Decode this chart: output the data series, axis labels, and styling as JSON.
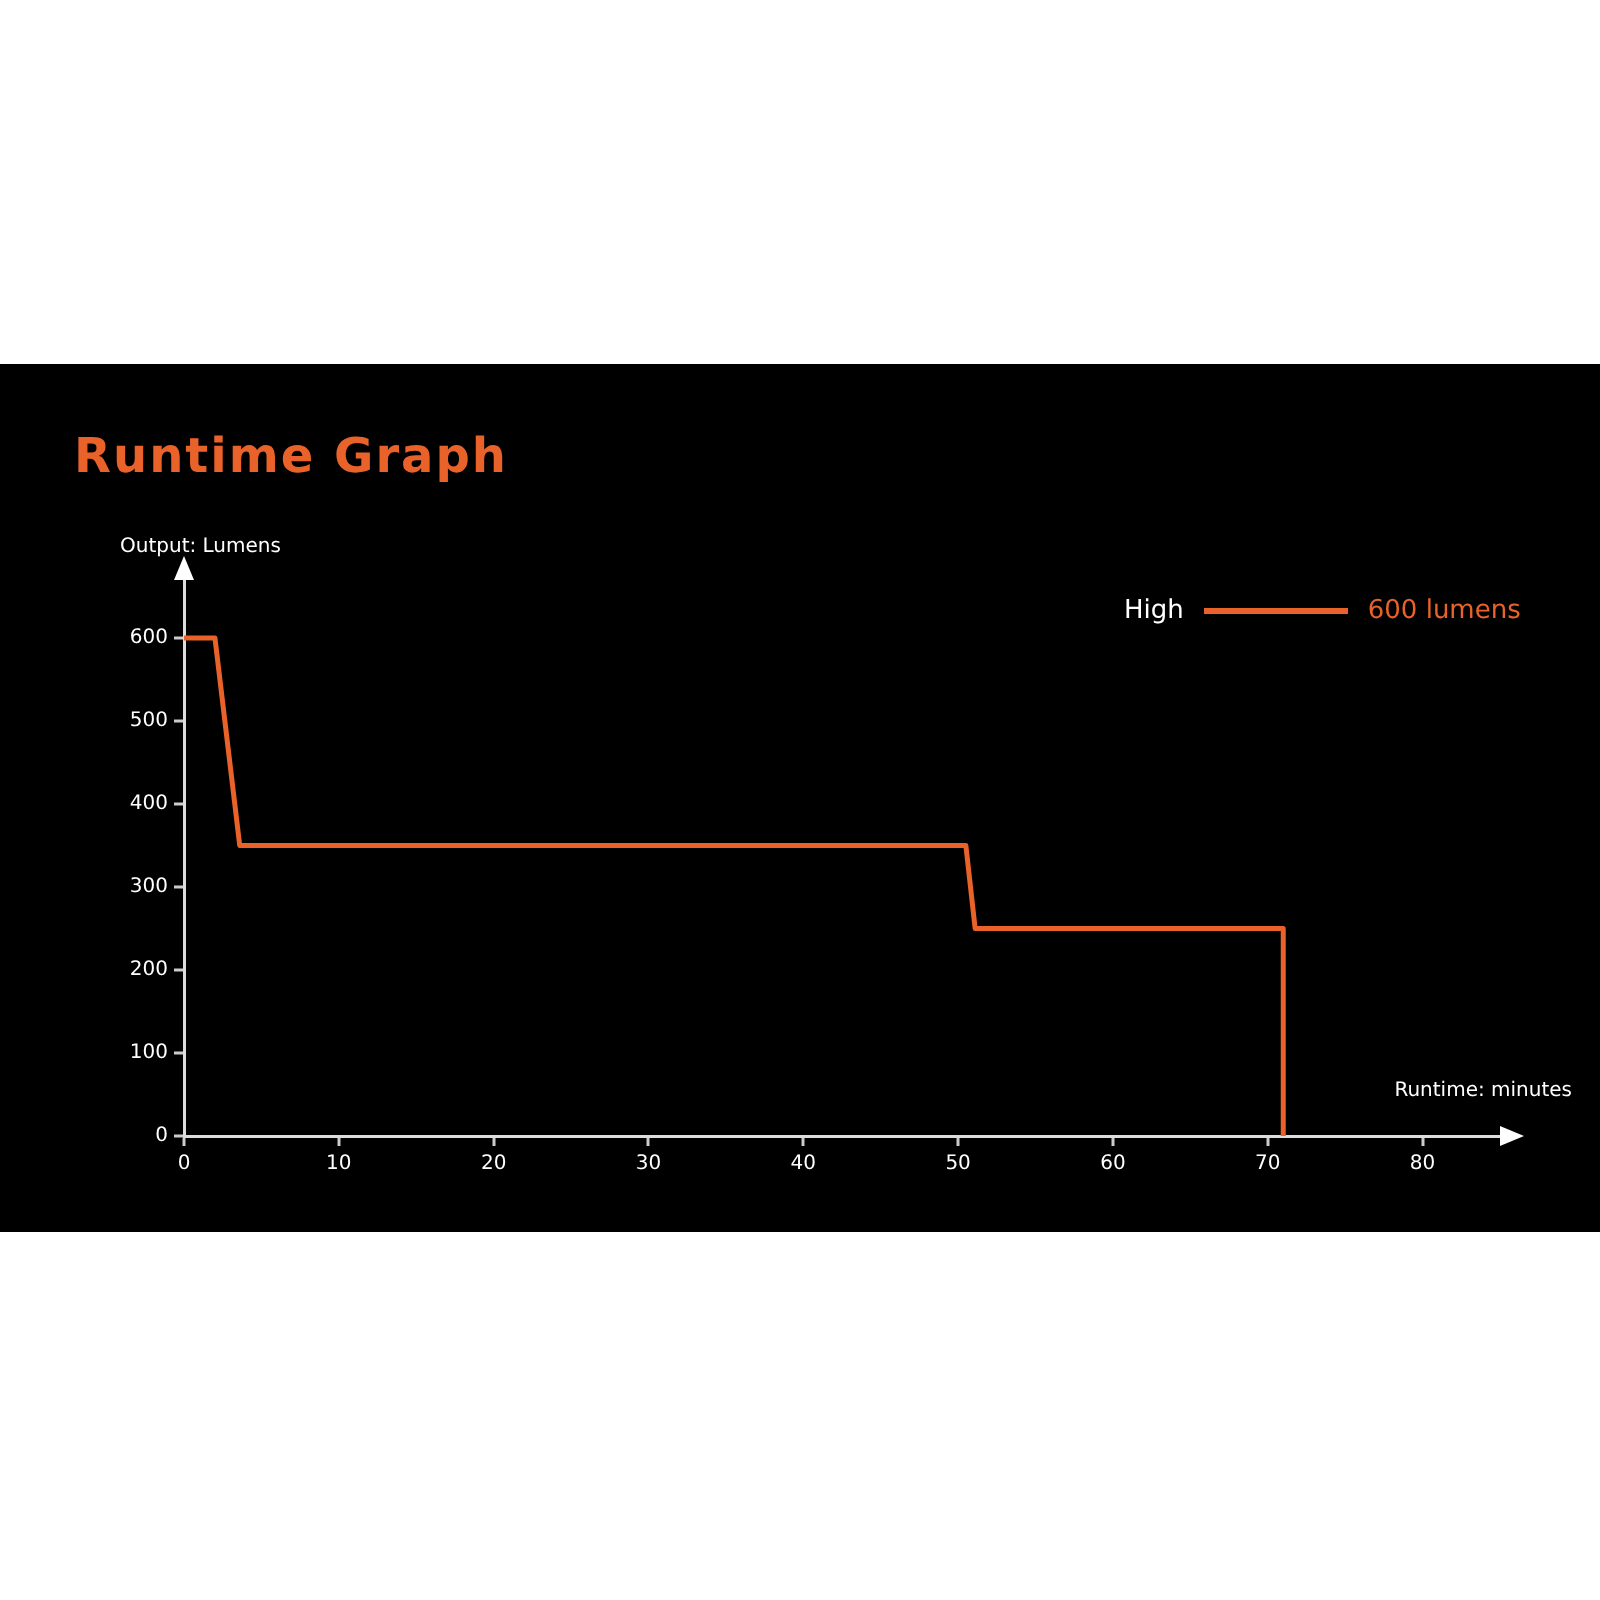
{
  "chart_data": {
    "type": "line",
    "title": "Runtime Graph",
    "xlabel": "Runtime: minutes",
    "ylabel": "Output: Lumens",
    "series": [
      {
        "name": "High",
        "color": "#e8622a",
        "x": [
          0,
          2,
          3.6,
          50.5,
          51.1,
          71,
          71
        ],
        "values": [
          600,
          600,
          350,
          350,
          250,
          250,
          0
        ]
      }
    ],
    "annotations": [
      "600 lumens"
    ],
    "xlim": [
      0,
      85
    ],
    "xticks": [
      0,
      10,
      20,
      30,
      40,
      50,
      60,
      70,
      80
    ],
    "ylim": [
      0,
      670
    ],
    "yticks": [
      0,
      100,
      200,
      300,
      400,
      500,
      600
    ],
    "grid": false,
    "legend": "top right",
    "marker": "none",
    "line_style": "solid"
  }
}
